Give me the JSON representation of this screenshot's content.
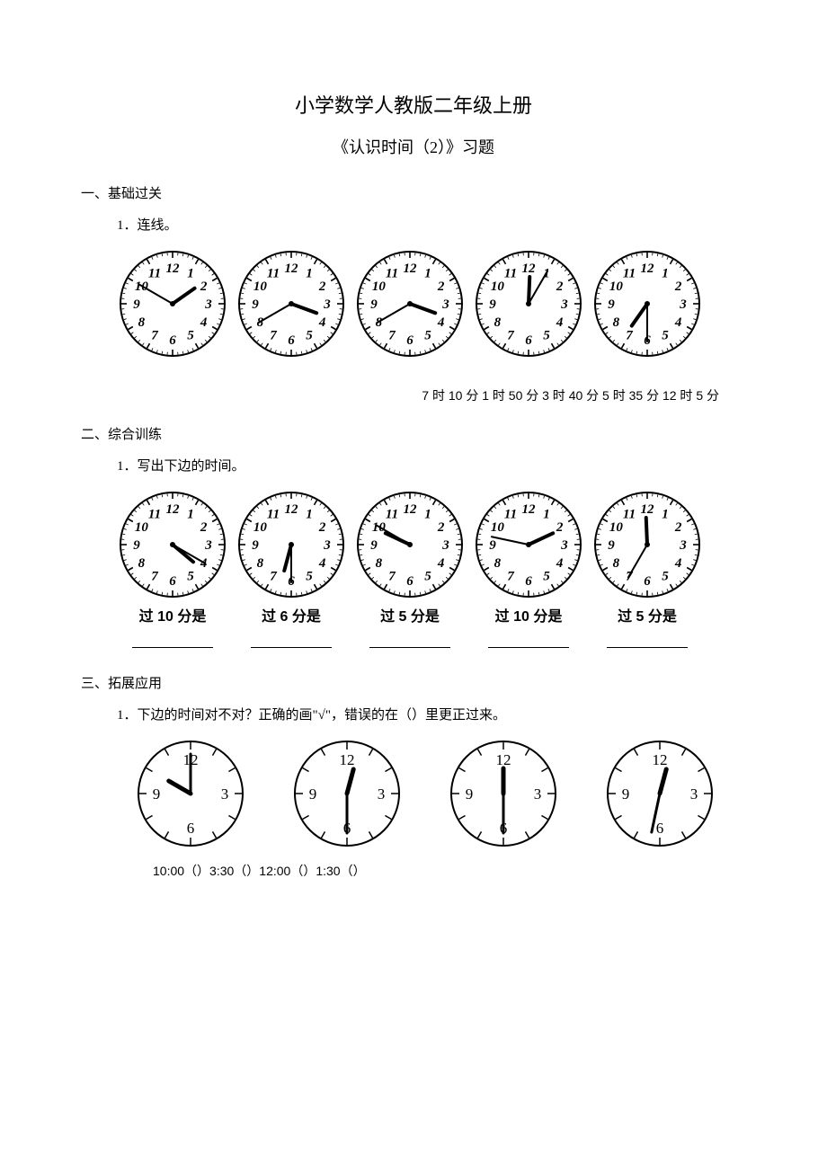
{
  "title1": "小学数学人教版二年级上册",
  "title2": "《认识时间（2）》习题",
  "section1": {
    "heading": "一、基础过关",
    "q1": "1．连线。",
    "clocks": [
      {
        "hour": 1.83,
        "minute": 50,
        "style": "full"
      },
      {
        "hour": 3.67,
        "minute": 40,
        "style": "full"
      },
      {
        "hour": 3.67,
        "minute": 40,
        "style": "full"
      },
      {
        "hour": 12.08,
        "minute": 5,
        "style": "full"
      },
      {
        "hour": 7.17,
        "minute": 30,
        "style": "full"
      }
    ],
    "answers": "7 时 10 分 1 时 50 分 3 时 40 分 5 时 35 分 12 时 5 分"
  },
  "section2": {
    "heading": "二、综合训练",
    "q1": "1．写出下边的时间。",
    "clocks": [
      {
        "hour": 4.33,
        "minute": 20,
        "style": "full",
        "caption": "过 10 分是"
      },
      {
        "hour": 6.5,
        "minute": 30,
        "style": "full",
        "caption": "过 6 分是"
      },
      {
        "hour": 9.83,
        "minute": 50,
        "style": "full",
        "caption": "过 5 分是"
      },
      {
        "hour": 2.17,
        "minute": 47,
        "style": "full",
        "caption": "过 10 分是"
      },
      {
        "hour": 11.92,
        "minute": 35,
        "style": "full",
        "caption": "过 5 分是"
      }
    ]
  },
  "section3": {
    "heading": "三、拓展应用",
    "q1": "1．下边的时间对不对？正确的画\"√\"，错误的在（）里更正过来。",
    "clocks": [
      {
        "hour": 10.0,
        "minute": 0,
        "style": "quad"
      },
      {
        "hour": 12.5,
        "minute": 30,
        "style": "quad"
      },
      {
        "hour": 12.0,
        "minute": 30,
        "style": "quad"
      },
      {
        "hour": 12.5,
        "minute": 32,
        "style": "quad"
      }
    ],
    "answers": "10:00（）3:30（）12:00（）1:30（）"
  },
  "style": {
    "clock_full": {
      "radius": 58,
      "stroke": "#000",
      "stroke_width": 2,
      "num_font": 15,
      "tick_len": 6,
      "sub_tick_len": 3,
      "hour_len": 30,
      "minute_len": 42,
      "hand_width": 3
    },
    "clock_quad": {
      "radius": 58,
      "stroke": "#000",
      "stroke_width": 2,
      "num_font": 17,
      "tick_len": 8,
      "hour_len": 28,
      "minute_len": 44,
      "hand_width": 5
    }
  }
}
